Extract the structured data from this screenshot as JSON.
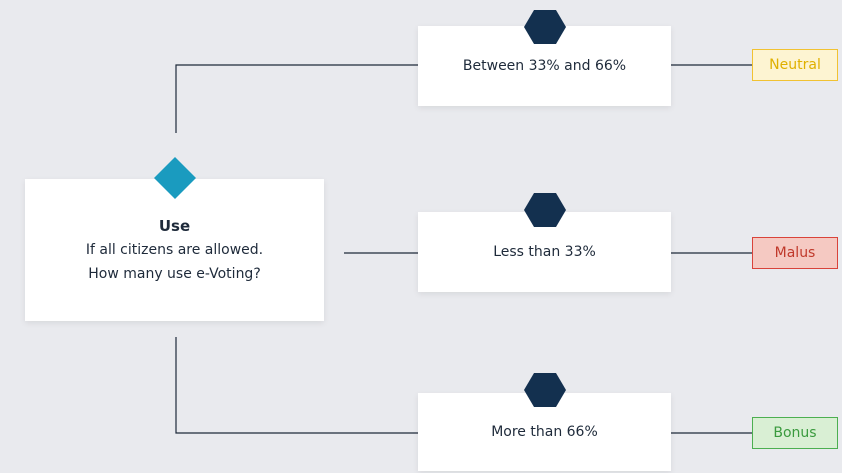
{
  "root": {
    "title": "Use",
    "lines": [
      "If all citizens are allowed.",
      "How many use e-Voting?"
    ]
  },
  "branches": [
    {
      "label": "Between 33% and 66%",
      "result": "Neutral"
    },
    {
      "label": "Less than 33%",
      "result": "Malus"
    },
    {
      "label": "More than 66%",
      "result": "Bonus"
    }
  ]
}
